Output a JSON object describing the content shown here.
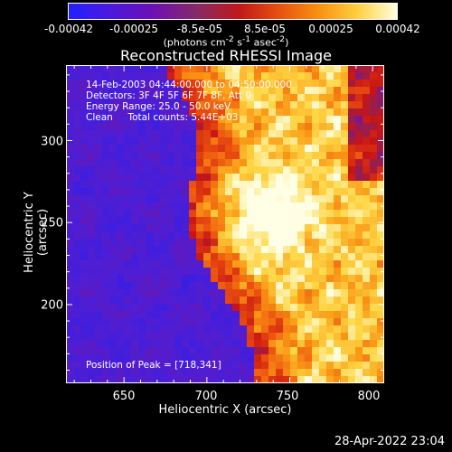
{
  "colorbar": {
    "ticks": [
      "-0.00042",
      "-0.00025",
      "-8.5e-05",
      "8.5e-05",
      "0.00025",
      "0.00042"
    ],
    "units_html": "(photons cm<sup>-2</sup> s<sup>-1</sup> asec<sup>-2</sup>)"
  },
  "title": "Reconstructed RHESSI Image",
  "info": {
    "line1": "14-Feb-2003 04:44:00.000 to 04:50:00.000",
    "line2": "Detectors: 3F 4F 5F 6F 7F 8F, Att 0",
    "line3": "Energy Range: 25.0 - 50.0 keV",
    "line4": "Clean     Total counts: 5.44E+03",
    "peak": "Position of Peak = [718,341]"
  },
  "timestamp": "28-Apr-2022 23:04",
  "chart_data": {
    "type": "heatmap",
    "title": "Reconstructed RHESSI Image",
    "xlabel": "Heliocentric X (arcsec)",
    "ylabel": "Heliocentric Y (arcsec)",
    "xlim": [
      615,
      807
    ],
    "ylim": [
      152,
      346
    ],
    "x_ticks": [
      650,
      700,
      750,
      800
    ],
    "y_ticks": [
      200,
      250,
      300
    ],
    "color_range": [
      -0.00042,
      0.00042
    ],
    "colormap": "red-temperature (blue negative, white positive)",
    "peak_position": [
      718,
      341
    ],
    "x_tick_labels": [
      "650",
      "700",
      "750",
      "800"
    ],
    "y_tick_labels": [
      "200",
      "250",
      "300"
    ]
  }
}
